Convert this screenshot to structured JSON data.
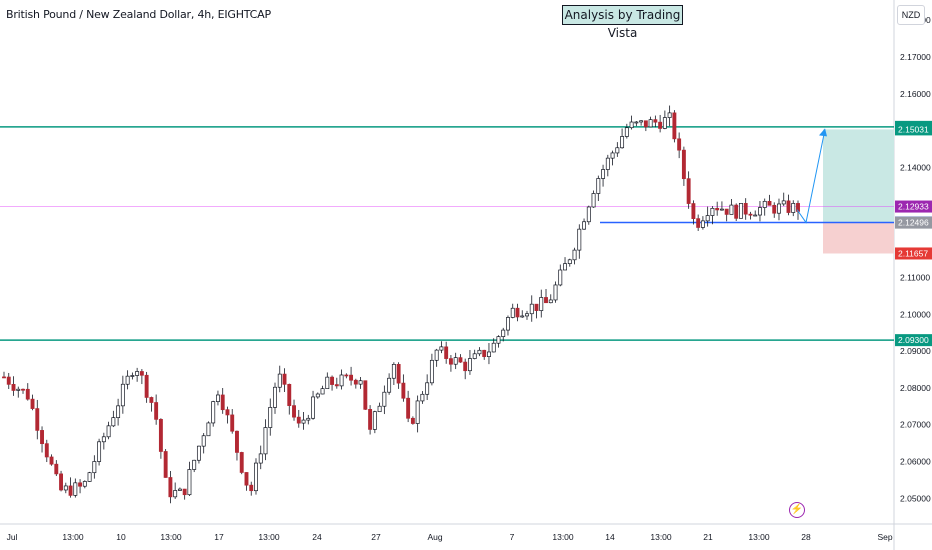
{
  "header": {
    "title": "British Pound / New Zealand Dollar, 4h, EIGHTCAP",
    "analysis_badge": "Analysis by Trading Vista",
    "currency_button": "NZD"
  },
  "chart_data": {
    "type": "candlestick",
    "title": "British Pound / New Zealand Dollar, 4h, EIGHTCAP",
    "ylim": [
      2.043,
      2.1855
    ],
    "y_ticks": [
      "2.18000",
      "2.17000",
      "2.16000",
      "2.14000",
      "2.13000",
      "2.11000",
      "2.10000",
      "2.09000",
      "2.08000",
      "2.07000",
      "2.06000",
      "2.05000"
    ],
    "x_ticks": [
      "Jul",
      "13:00",
      "10",
      "13:00",
      "17",
      "13:00",
      "24",
      "27",
      "Aug",
      "7",
      "13:00",
      "14",
      "13:00",
      "21",
      "13:00",
      "28",
      "Sep"
    ],
    "price_path": [
      [
        0,
        2.083
      ],
      [
        0.03,
        2.078
      ],
      [
        0.07,
        2.052
      ],
      [
        0.1,
        2.053
      ],
      [
        0.13,
        2.069
      ],
      [
        0.165,
        2.087
      ],
      [
        0.19,
        2.074
      ],
      [
        0.205,
        2.052
      ],
      [
        0.225,
        2.051
      ],
      [
        0.27,
        2.08
      ],
      [
        0.31,
        2.051
      ],
      [
        0.345,
        2.084
      ],
      [
        0.37,
        2.069
      ],
      [
        0.405,
        2.081
      ],
      [
        0.45,
        2.083
      ],
      [
        0.46,
        2.067
      ],
      [
        0.49,
        2.088
      ],
      [
        0.51,
        2.069
      ],
      [
        0.545,
        2.09
      ],
      [
        0.58,
        2.086
      ],
      [
        0.615,
        2.091
      ],
      [
        0.64,
        2.101
      ],
      [
        0.685,
        2.103
      ],
      [
        0.715,
        2.117
      ],
      [
        0.745,
        2.136
      ],
      [
        0.785,
        2.151
      ],
      [
        0.84,
        2.153
      ],
      [
        0.87,
        2.124
      ],
      [
        0.89,
        2.13
      ],
      [
        0.92,
        2.128
      ],
      [
        0.96,
        2.129
      ]
    ],
    "horizontal_levels": [
      {
        "label": "2.15100",
        "value": 2.151,
        "color": "#089981",
        "style": "resistance"
      },
      {
        "label": "2.09300",
        "value": 2.093,
        "color": "#089981",
        "style": "support"
      },
      {
        "label": "2.12500",
        "value": 2.125,
        "color": "#2962ff",
        "style": "entry"
      },
      {
        "label": "2.12933",
        "value": 2.12933,
        "color": "#e040fb",
        "style": "last-price"
      }
    ],
    "price_labels": [
      {
        "text": "2.15100",
        "value": 2.151,
        "bg": "#089981"
      },
      {
        "text": "2.15031",
        "value": 2.15031,
        "bg": "#089981"
      },
      {
        "text": "2.12933",
        "value": 2.12933,
        "bg": "#9c27b0"
      },
      {
        "text": "2.12500",
        "value": 2.125,
        "bg": "#2962ff"
      },
      {
        "text": "2.12496",
        "value": 2.12496,
        "bg": "#9598a1"
      },
      {
        "text": "2.11657",
        "value": 2.11657,
        "bg": "#e53935"
      },
      {
        "text": "2.09300",
        "value": 2.093,
        "bg": "#089981"
      }
    ],
    "position_tool": {
      "type": "long",
      "entry": 2.125,
      "target": 2.15031,
      "stop": 2.11657,
      "profit_color": "#c9e8e4",
      "loss_color": "#f6d0d0"
    },
    "colors": {
      "up": "#ffffff",
      "down": "#b22833",
      "wick": "#131722"
    },
    "grid": false
  }
}
